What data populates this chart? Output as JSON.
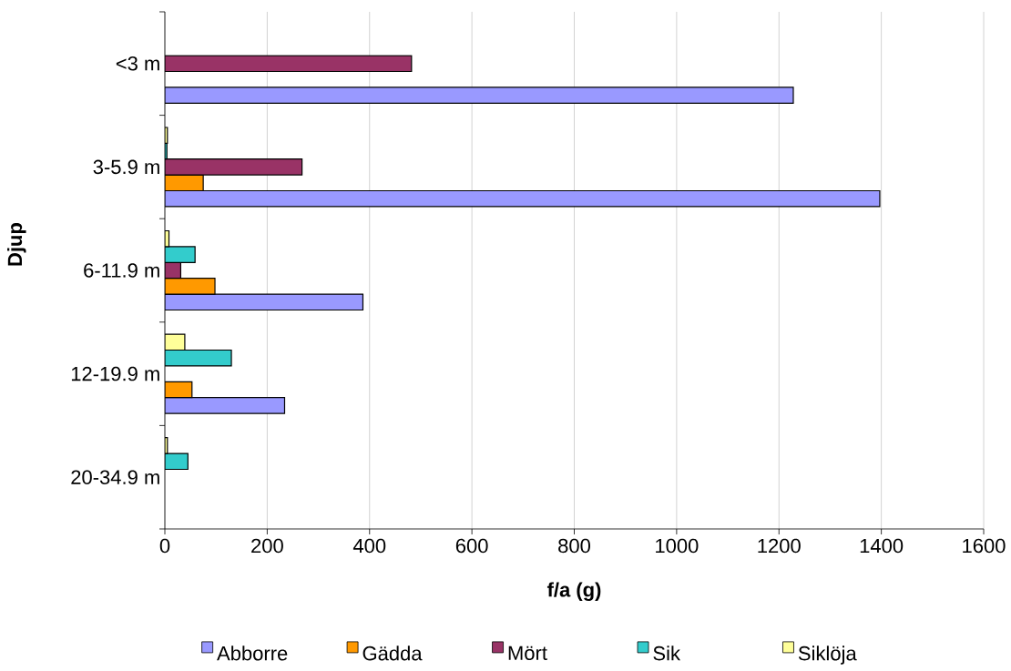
{
  "chart_data": {
    "type": "bar",
    "orientation": "horizontal",
    "xlabel": "f/a (g)",
    "ylabel": "Djup",
    "categories": [
      "<3 m",
      "3-5.9 m",
      "6-11.9 m",
      "12-19.9 m",
      "20-34.9 m"
    ],
    "series": [
      {
        "name": "Abborre",
        "color": "#9999ff",
        "values": [
          1228,
          1397,
          387,
          234,
          null
        ]
      },
      {
        "name": "Gädda",
        "color": "#ff9900",
        "values": [
          null,
          75,
          98,
          53,
          null
        ]
      },
      {
        "name": "Mört",
        "color": "#993366",
        "values": [
          482,
          268,
          31,
          null,
          null
        ]
      },
      {
        "name": "Sik",
        "color": "#33cccc",
        "values": [
          null,
          4,
          59,
          130,
          45
        ]
      },
      {
        "name": "Siklöja",
        "color": "#ffff99",
        "values": [
          null,
          5,
          8,
          39,
          5
        ]
      }
    ],
    "xlim": [
      0,
      1600
    ],
    "xticks": [
      0,
      200,
      400,
      600,
      800,
      1000,
      1200,
      1400,
      1600
    ],
    "grid": "x",
    "legend": "bottom"
  }
}
